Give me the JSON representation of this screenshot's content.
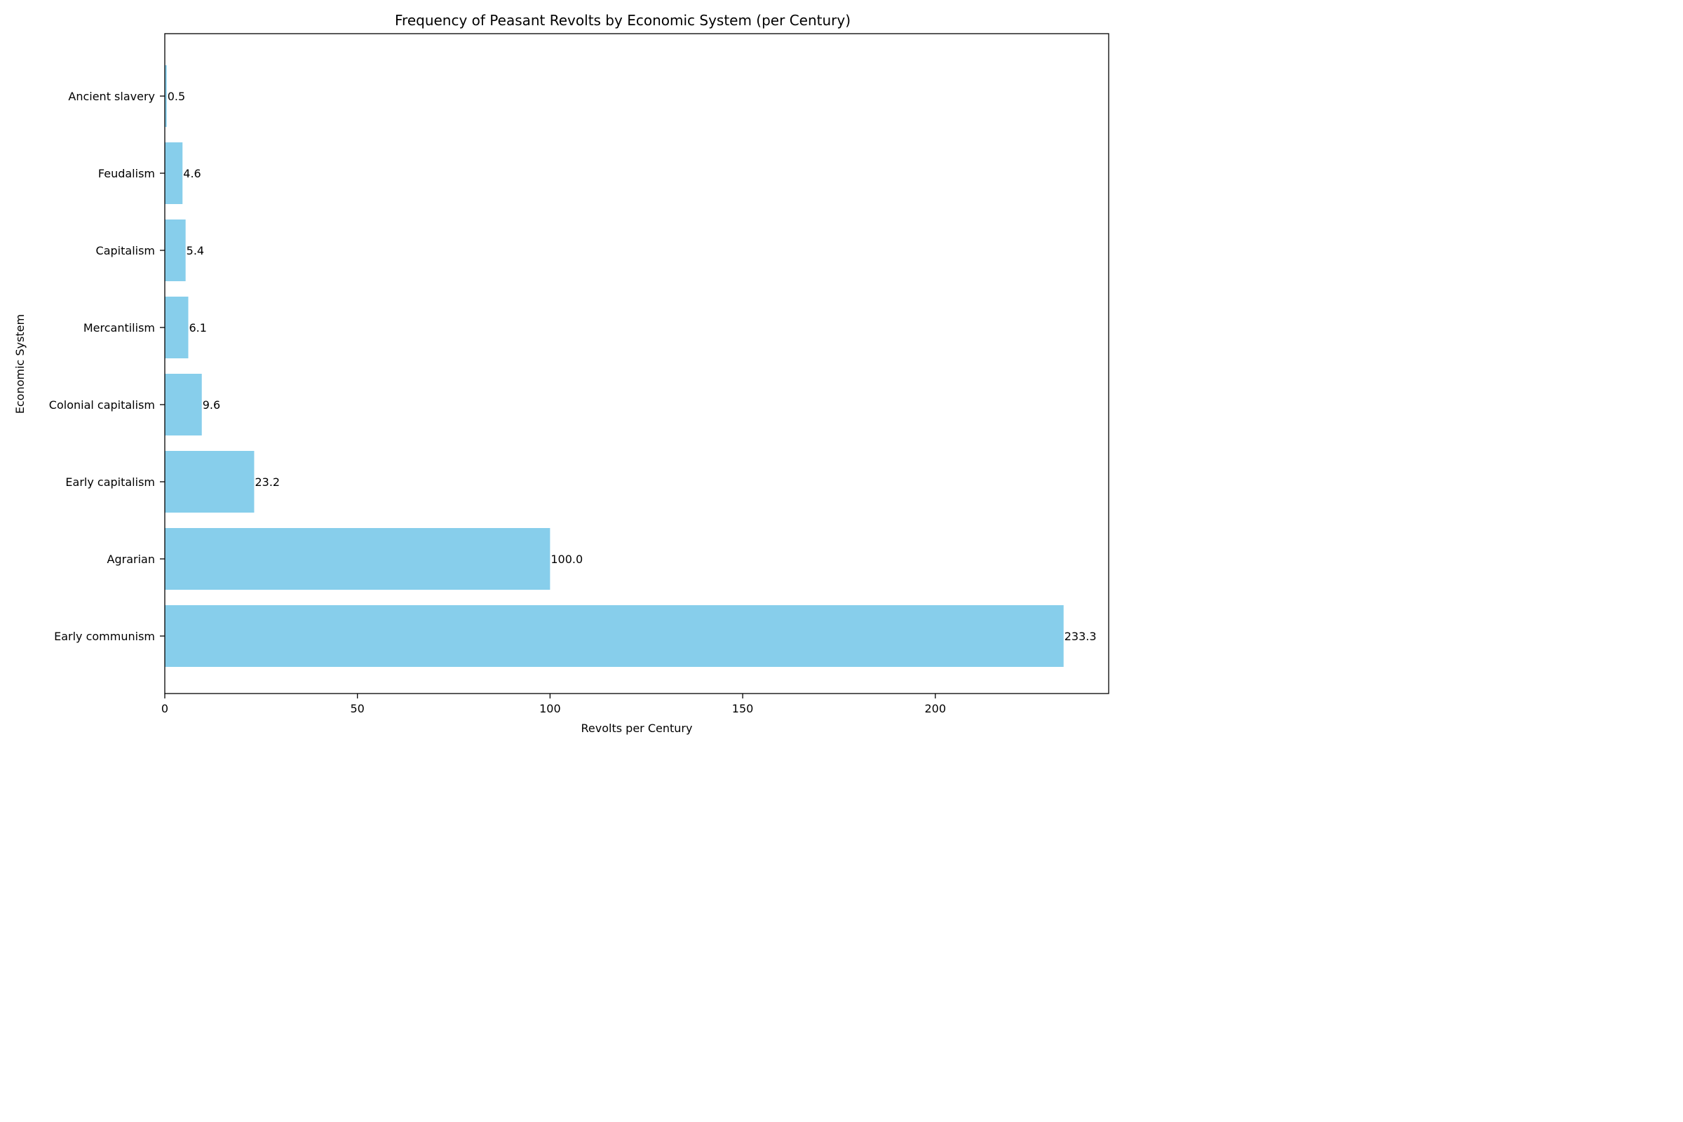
{
  "chart_data": {
    "type": "bar",
    "orientation": "horizontal",
    "title": "Frequency of Peasant Revolts by Economic System (per Century)",
    "xlabel": "Revolts per Century",
    "ylabel": "Economic System",
    "categories": [
      "Early communism",
      "Agrarian",
      "Early capitalism",
      "Colonial capitalism",
      "Mercantilism",
      "Capitalism",
      "Feudalism",
      "Ancient slavery"
    ],
    "values": [
      233.3,
      100.0,
      23.2,
      9.6,
      6.1,
      5.4,
      4.6,
      0.5
    ],
    "value_labels": [
      "233.3",
      "100.0",
      "23.2",
      "9.6",
      "6.1",
      "5.4",
      "4.6",
      "0.5"
    ],
    "xlim": [
      0,
      245
    ],
    "xticks": [
      0,
      50,
      100,
      150,
      200
    ],
    "xtick_labels": [
      "0",
      "50",
      "100",
      "150",
      "200"
    ],
    "grid": false,
    "bar_color": "#87CEEB",
    "text_color": "#000000"
  }
}
